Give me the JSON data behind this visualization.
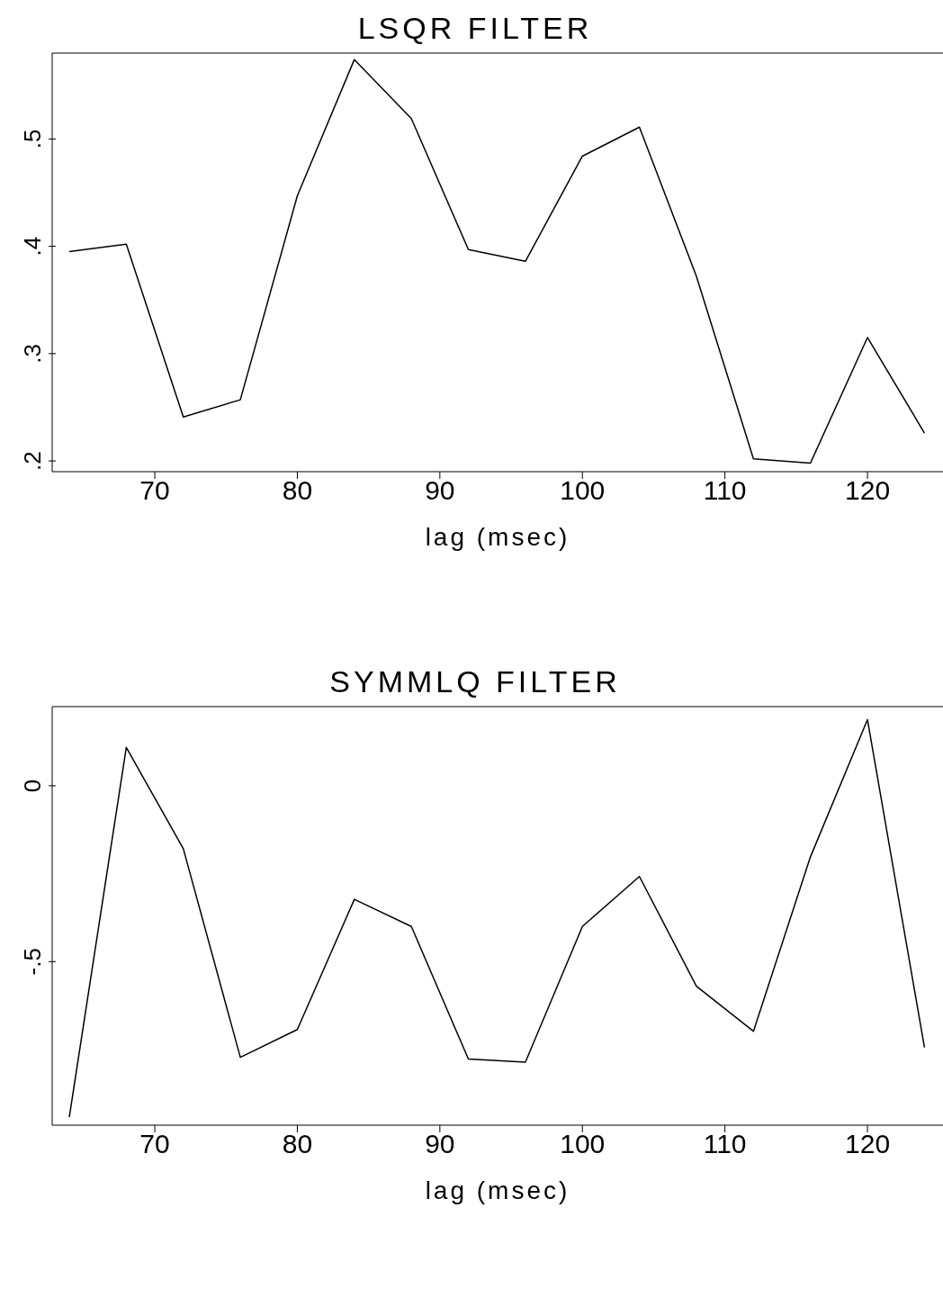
{
  "chart_data": [
    {
      "type": "line",
      "title": "LSQR FILTER",
      "xlabel": "lag (msec)",
      "x": [
        64,
        68,
        72,
        76,
        80,
        84,
        88,
        92,
        96,
        100,
        104,
        108,
        112,
        116,
        120,
        124
      ],
      "series": [
        {
          "color": "#000000",
          "values": [
            0.395,
            0.402,
            0.241,
            0.257,
            0.447,
            0.574,
            0.519,
            0.397,
            0.386,
            0.484,
            0.511,
            0.372,
            0.202,
            0.198,
            0.315,
            0.226
          ]
        }
      ],
      "xlim": [
        62.8,
        125.3
      ],
      "xticks": [
        70,
        80,
        90,
        100,
        110,
        120
      ],
      "ylim": [
        0.19,
        0.58
      ],
      "yticks": [
        {
          "value": 0.2,
          "label": ".2"
        },
        {
          "value": 0.3,
          "label": ".3"
        },
        {
          "value": 0.4,
          "label": ".4"
        },
        {
          "value": 0.5,
          "label": ".5"
        }
      ],
      "grid": false,
      "legend": false,
      "marker": "none",
      "line_style": "solid"
    },
    {
      "type": "line",
      "title": "SYMMLQ FILTER",
      "xlabel": "lag (msec)",
      "x": [
        64,
        68,
        72,
        76,
        80,
        84,
        88,
        92,
        96,
        100,
        104,
        108,
        112,
        116,
        120,
        124
      ],
      "series": [
        {
          "color": "#000000",
          "values": [
            -0.942,
            0.109,
            -0.179,
            -0.772,
            -0.693,
            -0.323,
            -0.4,
            -0.777,
            -0.786,
            -0.4,
            -0.258,
            -0.57,
            -0.698,
            -0.202,
            0.188,
            -0.744
          ]
        }
      ],
      "xlim": [
        62.8,
        125.3
      ],
      "xticks": [
        70,
        80,
        90,
        100,
        110,
        120
      ],
      "ylim": [
        -0.965,
        0.225
      ],
      "yticks": [
        {
          "value": -0.5,
          "label": "-.5"
        },
        0
      ],
      "grid": false,
      "legend": false,
      "marker": "none",
      "line_style": "solid"
    }
  ]
}
